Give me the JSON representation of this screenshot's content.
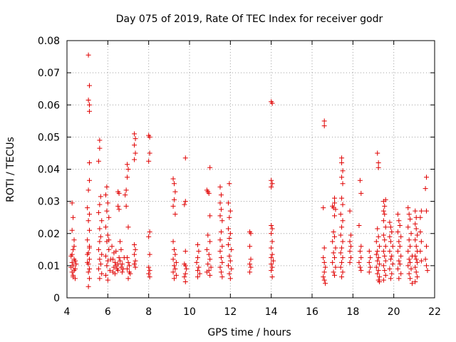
{
  "chart_data": {
    "type": "scatter",
    "title": "Day 075 of 2019, Rate Of TEC Index for receiver godr",
    "xlabel": "GPS time / hours",
    "ylabel": "ROTI / TECUs",
    "xlim": [
      4,
      22
    ],
    "ylim": [
      0,
      0.08
    ],
    "xticks": [
      4,
      6,
      8,
      10,
      12,
      14,
      16,
      18,
      20,
      22
    ],
    "xtick_labels": [
      "4",
      "6",
      "8",
      "10",
      "12",
      "14",
      "16",
      "18",
      "20",
      "22"
    ],
    "yticks": [
      0,
      0.01,
      0.02,
      0.03,
      0.04,
      0.05,
      0.06,
      0.07,
      0.08
    ],
    "ytick_labels": [
      "0",
      "0.01",
      "0.02",
      "0.03",
      "0.04",
      "0.05",
      "0.06",
      "0.07",
      "0.08"
    ],
    "grid": true,
    "marker": "plus",
    "color": "#e00000",
    "points": [
      [
        4.25,
        0.0295
      ],
      [
        4.3,
        0.025
      ],
      [
        4.25,
        0.021
      ],
      [
        4.35,
        0.018
      ],
      [
        4.3,
        0.015
      ],
      [
        4.2,
        0.013
      ],
      [
        4.35,
        0.012
      ],
      [
        4.25,
        0.011
      ],
      [
        4.3,
        0.01
      ],
      [
        4.4,
        0.009
      ],
      [
        4.25,
        0.008
      ],
      [
        4.3,
        0.007
      ],
      [
        4.4,
        0.006
      ],
      [
        4.2,
        0.0095
      ],
      [
        4.45,
        0.0105
      ],
      [
        4.35,
        0.0085
      ],
      [
        4.3,
        0.0065
      ],
      [
        4.4,
        0.0115
      ],
      [
        4.25,
        0.0135
      ],
      [
        4.35,
        0.016
      ],
      [
        5.05,
        0.0755
      ],
      [
        5.1,
        0.066
      ],
      [
        5.05,
        0.0615
      ],
      [
        5.1,
        0.06
      ],
      [
        5.1,
        0.058
      ],
      [
        5.1,
        0.042
      ],
      [
        5.1,
        0.0365
      ],
      [
        5.05,
        0.0335
      ],
      [
        5.0,
        0.028
      ],
      [
        5.1,
        0.026
      ],
      [
        5.05,
        0.024
      ],
      [
        5.1,
        0.021
      ],
      [
        5.0,
        0.018
      ],
      [
        5.1,
        0.016
      ],
      [
        5.05,
        0.014
      ],
      [
        5.1,
        0.012
      ],
      [
        5.0,
        0.011
      ],
      [
        5.1,
        0.009
      ],
      [
        5.05,
        0.008
      ],
      [
        5.1,
        0.006
      ],
      [
        5.05,
        0.0035
      ],
      [
        5.0,
        0.0135
      ],
      [
        5.1,
        0.0155
      ],
      [
        5.05,
        0.0105
      ],
      [
        5.6,
        0.049
      ],
      [
        5.6,
        0.0465
      ],
      [
        5.55,
        0.0425
      ],
      [
        5.65,
        0.0315
      ],
      [
        5.6,
        0.029
      ],
      [
        5.55,
        0.0265
      ],
      [
        5.7,
        0.024
      ],
      [
        5.6,
        0.0215
      ],
      [
        5.65,
        0.019
      ],
      [
        5.6,
        0.0175
      ],
      [
        5.55,
        0.015
      ],
      [
        5.7,
        0.0135
      ],
      [
        5.6,
        0.012
      ],
      [
        5.65,
        0.0105
      ],
      [
        5.55,
        0.009
      ],
      [
        5.7,
        0.0075
      ],
      [
        5.6,
        0.006
      ],
      [
        5.95,
        0.0345
      ],
      [
        5.9,
        0.032
      ],
      [
        6.0,
        0.0295
      ],
      [
        5.95,
        0.027
      ],
      [
        6.05,
        0.025
      ],
      [
        5.9,
        0.022
      ],
      [
        6.0,
        0.0195
      ],
      [
        5.95,
        0.0175
      ],
      [
        6.05,
        0.015
      ],
      [
        5.9,
        0.013
      ],
      [
        6.0,
        0.0115
      ],
      [
        5.95,
        0.01
      ],
      [
        6.1,
        0.0085
      ],
      [
        5.9,
        0.007
      ],
      [
        6.0,
        0.0055
      ],
      [
        6.05,
        0.018
      ],
      [
        6.15,
        0.012
      ],
      [
        6.2,
        0.016
      ],
      [
        6.3,
        0.014
      ],
      [
        6.25,
        0.012
      ],
      [
        6.35,
        0.011
      ],
      [
        6.4,
        0.01
      ],
      [
        6.3,
        0.0095
      ],
      [
        6.45,
        0.009
      ],
      [
        6.5,
        0.0085
      ],
      [
        6.25,
        0.008
      ],
      [
        6.55,
        0.0125
      ],
      [
        6.4,
        0.0145
      ],
      [
        6.35,
        0.0075
      ],
      [
        6.5,
        0.0105
      ],
      [
        6.5,
        0.033
      ],
      [
        6.55,
        0.0325
      ],
      [
        6.5,
        0.0285
      ],
      [
        6.55,
        0.0275
      ],
      [
        6.6,
        0.0175
      ],
      [
        6.65,
        0.015
      ],
      [
        6.6,
        0.0115
      ],
      [
        6.7,
        0.0105
      ],
      [
        6.65,
        0.0095
      ],
      [
        6.75,
        0.009
      ],
      [
        6.7,
        0.008
      ],
      [
        6.8,
        0.0125
      ],
      [
        6.9,
        0.0335
      ],
      [
        6.85,
        0.032
      ],
      [
        6.95,
        0.0415
      ],
      [
        7.0,
        0.04
      ],
      [
        6.95,
        0.0375
      ],
      [
        6.9,
        0.0285
      ],
      [
        7.0,
        0.022
      ],
      [
        6.95,
        0.0125
      ],
      [
        7.0,
        0.011
      ],
      [
        7.05,
        0.01
      ],
      [
        6.95,
        0.009
      ],
      [
        7.05,
        0.008
      ],
      [
        7.1,
        0.0075
      ],
      [
        7.0,
        0.006
      ],
      [
        7.3,
        0.051
      ],
      [
        7.35,
        0.0495
      ],
      [
        7.3,
        0.0475
      ],
      [
        7.35,
        0.045
      ],
      [
        7.3,
        0.043
      ],
      [
        7.3,
        0.0165
      ],
      [
        7.35,
        0.015
      ],
      [
        7.3,
        0.0135
      ],
      [
        7.35,
        0.0115
      ],
      [
        7.3,
        0.0105
      ],
      [
        7.35,
        0.0095
      ],
      [
        8.0,
        0.0505
      ],
      [
        8.05,
        0.05
      ],
      [
        8.05,
        0.045
      ],
      [
        8.0,
        0.0425
      ],
      [
        8.05,
        0.0205
      ],
      [
        8.0,
        0.019
      ],
      [
        8.05,
        0.0135
      ],
      [
        8.0,
        0.0095
      ],
      [
        8.05,
        0.0085
      ],
      [
        8.0,
        0.0075
      ],
      [
        8.05,
        0.0065
      ],
      [
        9.2,
        0.037
      ],
      [
        9.25,
        0.0355
      ],
      [
        9.3,
        0.033
      ],
      [
        9.25,
        0.0305
      ],
      [
        9.2,
        0.0285
      ],
      [
        9.3,
        0.026
      ],
      [
        9.2,
        0.0175
      ],
      [
        9.25,
        0.015
      ],
      [
        9.3,
        0.0135
      ],
      [
        9.2,
        0.012
      ],
      [
        9.35,
        0.011
      ],
      [
        9.25,
        0.01
      ],
      [
        9.3,
        0.009
      ],
      [
        9.2,
        0.008
      ],
      [
        9.35,
        0.007
      ],
      [
        9.25,
        0.006
      ],
      [
        9.8,
        0.0435
      ],
      [
        9.8,
        0.03
      ],
      [
        9.75,
        0.029
      ],
      [
        9.8,
        0.0145
      ],
      [
        9.75,
        0.0105
      ],
      [
        9.8,
        0.01
      ],
      [
        9.85,
        0.009
      ],
      [
        9.8,
        0.0075
      ],
      [
        9.75,
        0.0065
      ],
      [
        9.8,
        0.005
      ],
      [
        10.4,
        0.0165
      ],
      [
        10.45,
        0.0145
      ],
      [
        10.4,
        0.0125
      ],
      [
        10.35,
        0.011
      ],
      [
        10.45,
        0.0095
      ],
      [
        10.4,
        0.0085
      ],
      [
        10.5,
        0.0075
      ],
      [
        10.4,
        0.0065
      ],
      [
        10.85,
        0.0335
      ],
      [
        10.9,
        0.033
      ],
      [
        10.95,
        0.0325
      ],
      [
        11.0,
        0.0405
      ],
      [
        11.0,
        0.0255
      ],
      [
        10.9,
        0.0195
      ],
      [
        11.0,
        0.0175
      ],
      [
        10.85,
        0.015
      ],
      [
        10.95,
        0.0135
      ],
      [
        11.0,
        0.012
      ],
      [
        10.9,
        0.0105
      ],
      [
        11.05,
        0.0095
      ],
      [
        10.95,
        0.0085
      ],
      [
        10.85,
        0.008
      ],
      [
        11.0,
        0.007
      ],
      [
        11.5,
        0.0345
      ],
      [
        11.55,
        0.032
      ],
      [
        11.5,
        0.0295
      ],
      [
        11.55,
        0.0275
      ],
      [
        11.5,
        0.0255
      ],
      [
        11.6,
        0.024
      ],
      [
        11.55,
        0.0205
      ],
      [
        11.5,
        0.018
      ],
      [
        11.6,
        0.016
      ],
      [
        11.5,
        0.0145
      ],
      [
        11.55,
        0.0125
      ],
      [
        11.6,
        0.011
      ],
      [
        11.5,
        0.0095
      ],
      [
        11.55,
        0.008
      ],
      [
        11.6,
        0.0065
      ],
      [
        11.95,
        0.0355
      ],
      [
        11.9,
        0.0295
      ],
      [
        12.0,
        0.027
      ],
      [
        11.95,
        0.025
      ],
      [
        11.9,
        0.0215
      ],
      [
        12.0,
        0.02
      ],
      [
        11.95,
        0.0185
      ],
      [
        11.9,
        0.0165
      ],
      [
        12.05,
        0.015
      ],
      [
        11.95,
        0.013
      ],
      [
        12.0,
        0.0115
      ],
      [
        11.9,
        0.01
      ],
      [
        12.05,
        0.009
      ],
      [
        11.95,
        0.0075
      ],
      [
        12.0,
        0.006
      ],
      [
        12.95,
        0.0205
      ],
      [
        13.0,
        0.02
      ],
      [
        12.95,
        0.016
      ],
      [
        13.0,
        0.012
      ],
      [
        12.95,
        0.0105
      ],
      [
        13.0,
        0.0095
      ],
      [
        12.95,
        0.008
      ],
      [
        14.0,
        0.061
      ],
      [
        14.05,
        0.0605
      ],
      [
        14.0,
        0.0365
      ],
      [
        14.05,
        0.0355
      ],
      [
        14.0,
        0.0345
      ],
      [
        14.0,
        0.0225
      ],
      [
        14.05,
        0.0215
      ],
      [
        14.0,
        0.02
      ],
      [
        14.05,
        0.0175
      ],
      [
        14.0,
        0.0155
      ],
      [
        14.05,
        0.0135
      ],
      [
        14.0,
        0.0125
      ],
      [
        14.1,
        0.0115
      ],
      [
        14.0,
        0.0105
      ],
      [
        14.05,
        0.0095
      ],
      [
        14.0,
        0.0085
      ],
      [
        14.05,
        0.0065
      ],
      [
        16.6,
        0.055
      ],
      [
        16.6,
        0.0535
      ],
      [
        16.55,
        0.028
      ],
      [
        16.6,
        0.0155
      ],
      [
        16.55,
        0.0125
      ],
      [
        16.6,
        0.011
      ],
      [
        16.65,
        0.0095
      ],
      [
        16.6,
        0.008
      ],
      [
        16.55,
        0.0065
      ],
      [
        16.6,
        0.0055
      ],
      [
        16.65,
        0.0045
      ],
      [
        17.0,
        0.0285
      ],
      [
        17.05,
        0.028
      ],
      [
        17.1,
        0.031
      ],
      [
        17.1,
        0.0295
      ],
      [
        17.15,
        0.0275
      ],
      [
        17.1,
        0.0255
      ],
      [
        17.05,
        0.0205
      ],
      [
        17.1,
        0.019
      ],
      [
        17.0,
        0.0175
      ],
      [
        17.15,
        0.0155
      ],
      [
        17.05,
        0.014
      ],
      [
        17.1,
        0.0125
      ],
      [
        17.0,
        0.011
      ],
      [
        17.15,
        0.0095
      ],
      [
        17.05,
        0.008
      ],
      [
        17.1,
        0.007
      ],
      [
        17.45,
        0.0435
      ],
      [
        17.45,
        0.042
      ],
      [
        17.5,
        0.0395
      ],
      [
        17.45,
        0.0375
      ],
      [
        17.5,
        0.0355
      ],
      [
        17.45,
        0.031
      ],
      [
        17.5,
        0.029
      ],
      [
        17.4,
        0.026
      ],
      [
        17.5,
        0.024
      ],
      [
        17.45,
        0.022
      ],
      [
        17.4,
        0.0195
      ],
      [
        17.5,
        0.0175
      ],
      [
        17.45,
        0.0155
      ],
      [
        17.4,
        0.014
      ],
      [
        17.5,
        0.0125
      ],
      [
        17.45,
        0.011
      ],
      [
        17.4,
        0.0095
      ],
      [
        17.5,
        0.008
      ],
      [
        17.45,
        0.0065
      ],
      [
        17.85,
        0.027
      ],
      [
        17.9,
        0.0195
      ],
      [
        17.85,
        0.0175
      ],
      [
        17.9,
        0.016
      ],
      [
        17.85,
        0.0145
      ],
      [
        17.9,
        0.0125
      ],
      [
        17.85,
        0.011
      ],
      [
        18.35,
        0.0365
      ],
      [
        18.4,
        0.0325
      ],
      [
        18.3,
        0.0225
      ],
      [
        18.4,
        0.016
      ],
      [
        18.35,
        0.0145
      ],
      [
        18.4,
        0.0125
      ],
      [
        18.3,
        0.011
      ],
      [
        18.35,
        0.0095
      ],
      [
        18.4,
        0.0085
      ],
      [
        18.8,
        0.0145
      ],
      [
        18.85,
        0.0125
      ],
      [
        18.8,
        0.011
      ],
      [
        18.85,
        0.0095
      ],
      [
        18.8,
        0.008
      ],
      [
        19.2,
        0.045
      ],
      [
        19.25,
        0.042
      ],
      [
        19.25,
        0.0405
      ],
      [
        19.2,
        0.0215
      ],
      [
        19.25,
        0.019
      ],
      [
        19.15,
        0.0175
      ],
      [
        19.3,
        0.016
      ],
      [
        19.2,
        0.0145
      ],
      [
        19.15,
        0.0135
      ],
      [
        19.25,
        0.0125
      ],
      [
        19.2,
        0.0115
      ],
      [
        19.3,
        0.0105
      ],
      [
        19.15,
        0.0095
      ],
      [
        19.25,
        0.0085
      ],
      [
        19.2,
        0.0075
      ],
      [
        19.3,
        0.0065
      ],
      [
        19.25,
        0.0055
      ],
      [
        19.3,
        0.005
      ],
      [
        19.5,
        0.03
      ],
      [
        19.55,
        0.0285
      ],
      [
        19.5,
        0.027
      ],
      [
        19.6,
        0.0305
      ],
      [
        19.55,
        0.026
      ],
      [
        19.5,
        0.024
      ],
      [
        19.6,
        0.022
      ],
      [
        19.5,
        0.0195
      ],
      [
        19.55,
        0.018
      ],
      [
        19.6,
        0.016
      ],
      [
        19.5,
        0.0145
      ],
      [
        19.55,
        0.013
      ],
      [
        19.6,
        0.0115
      ],
      [
        19.5,
        0.01
      ],
      [
        19.55,
        0.0085
      ],
      [
        19.6,
        0.007
      ],
      [
        19.5,
        0.0055
      ],
      [
        19.8,
        0.0235
      ],
      [
        19.85,
        0.022
      ],
      [
        19.9,
        0.0205
      ],
      [
        19.8,
        0.019
      ],
      [
        19.85,
        0.0175
      ],
      [
        19.95,
        0.016
      ],
      [
        19.8,
        0.0145
      ],
      [
        19.9,
        0.013
      ],
      [
        19.85,
        0.012
      ],
      [
        19.95,
        0.0105
      ],
      [
        19.8,
        0.009
      ],
      [
        19.9,
        0.0075
      ],
      [
        19.85,
        0.006
      ],
      [
        20.2,
        0.026
      ],
      [
        20.25,
        0.024
      ],
      [
        20.3,
        0.0225
      ],
      [
        20.2,
        0.0205
      ],
      [
        20.35,
        0.019
      ],
      [
        20.25,
        0.0175
      ],
      [
        20.3,
        0.016
      ],
      [
        20.2,
        0.0145
      ],
      [
        20.35,
        0.013
      ],
      [
        20.25,
        0.0115
      ],
      [
        20.3,
        0.0105
      ],
      [
        20.2,
        0.009
      ],
      [
        20.35,
        0.0075
      ],
      [
        20.25,
        0.006
      ],
      [
        20.7,
        0.028
      ],
      [
        20.75,
        0.026
      ],
      [
        20.8,
        0.0245
      ],
      [
        20.7,
        0.022
      ],
      [
        20.85,
        0.02
      ],
      [
        20.75,
        0.018
      ],
      [
        20.8,
        0.016
      ],
      [
        20.7,
        0.0145
      ],
      [
        20.9,
        0.013
      ],
      [
        20.75,
        0.012
      ],
      [
        20.8,
        0.011
      ],
      [
        20.7,
        0.01
      ],
      [
        20.85,
        0.009
      ],
      [
        20.75,
        0.0075
      ],
      [
        20.8,
        0.006
      ],
      [
        20.9,
        0.0045
      ],
      [
        21.05,
        0.027
      ],
      [
        21.1,
        0.025
      ],
      [
        21.05,
        0.023
      ],
      [
        21.1,
        0.0215
      ],
      [
        21.15,
        0.0195
      ],
      [
        21.05,
        0.018
      ],
      [
        21.1,
        0.016
      ],
      [
        21.15,
        0.0145
      ],
      [
        21.05,
        0.013
      ],
      [
        21.1,
        0.012
      ],
      [
        21.15,
        0.011
      ],
      [
        21.05,
        0.0095
      ],
      [
        21.1,
        0.008
      ],
      [
        21.15,
        0.0065
      ],
      [
        21.05,
        0.005
      ],
      [
        21.3,
        0.025
      ],
      [
        21.35,
        0.027
      ],
      [
        21.3,
        0.0205
      ],
      [
        21.35,
        0.0175
      ],
      [
        21.3,
        0.0145
      ],
      [
        21.35,
        0.0115
      ],
      [
        21.6,
        0.0375
      ],
      [
        21.55,
        0.034
      ],
      [
        21.6,
        0.027
      ],
      [
        21.6,
        0.016
      ],
      [
        21.55,
        0.012
      ],
      [
        21.6,
        0.01
      ],
      [
        21.65,
        0.0085
      ]
    ]
  }
}
